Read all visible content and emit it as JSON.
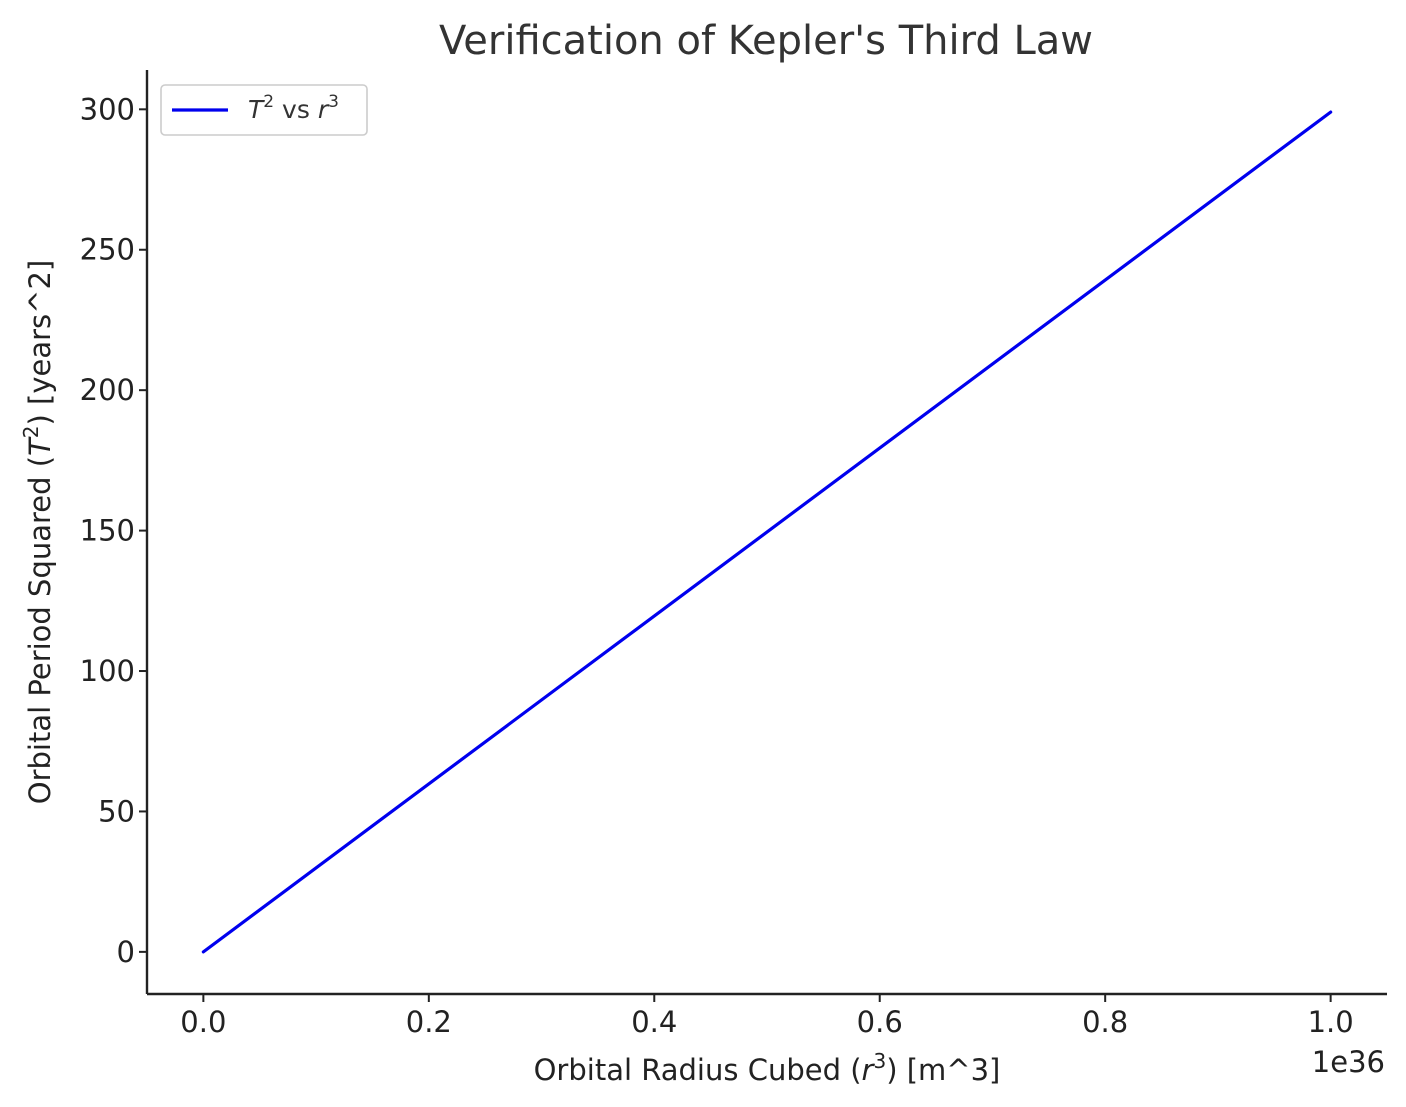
{
  "colors": {
    "series": "#0000ee",
    "axis": "#222222",
    "legend_border": "#cccccc"
  },
  "chart_data": {
    "type": "line",
    "title": "Verification of Kepler's Third Law",
    "xlabel": {
      "prefix": "Orbital Radius Cubed (",
      "var": "r",
      "sup": "3",
      "suffix": ") [m^3]"
    },
    "ylabel": {
      "prefix": "Orbital Period Squared (",
      "var": "T",
      "sup": "2",
      "suffix": ") [years^2]"
    },
    "x_offset_label": "1e36",
    "x_scale": 1e+36,
    "xlim": [
      -0.05,
      1.05
    ],
    "ylim": [
      -15,
      314
    ],
    "x_ticks": [
      0.0,
      0.2,
      0.4,
      0.6,
      0.8,
      1.0
    ],
    "x_tick_labels": [
      "0.0",
      "0.2",
      "0.4",
      "0.6",
      "0.8",
      "1.0"
    ],
    "y_ticks": [
      0,
      50,
      100,
      150,
      200,
      250,
      300
    ],
    "y_tick_labels": [
      "0",
      "50",
      "100",
      "150",
      "200",
      "250",
      "300"
    ],
    "grid": false,
    "legend_position": "top-left",
    "series": [
      {
        "legend": {
          "var1": "T",
          "sup1": "2",
          "mid": " vs ",
          "var2": "r",
          "sup2": "3"
        },
        "x": [
          0.0,
          1.0
        ],
        "y": [
          0,
          299
        ]
      }
    ]
  }
}
